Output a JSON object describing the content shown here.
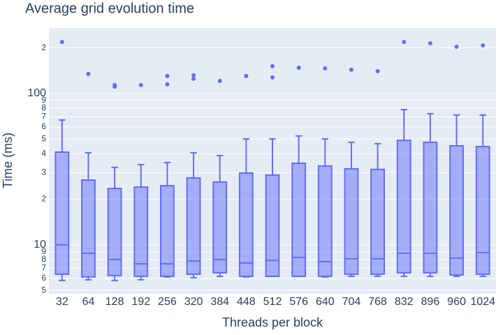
{
  "chart_data": {
    "type": "box",
    "title": "Average grid evolution time",
    "x_label": "Threads per block",
    "y_label": "Time (ms)",
    "categories": [
      "32",
      "64",
      "128",
      "192",
      "256",
      "320",
      "384",
      "448",
      "512",
      "576",
      "640",
      "704",
      "768",
      "832",
      "896",
      "960",
      "1024"
    ],
    "series": [
      {
        "color": "#636efa",
        "min": [
          5.82,
          5.88,
          5.82,
          5.88,
          6.14,
          6.07,
          6.2,
          6.14,
          6.2,
          6.2,
          6.14,
          6.2,
          6.2,
          6.2,
          6.2,
          6.2,
          6.2
        ],
        "q1": [
          6.4,
          6.14,
          6.27,
          6.2,
          6.2,
          6.4,
          6.54,
          6.2,
          6.2,
          6.2,
          6.2,
          6.4,
          6.4,
          6.54,
          6.54,
          6.33,
          6.4
        ],
        "median": [
          10,
          8.8,
          8.0,
          7.5,
          7.5,
          7.83,
          8.0,
          7.6,
          7.9,
          8.26,
          7.75,
          8.09,
          8.09,
          8.8,
          8.8,
          8.17,
          8.9
        ],
        "q3": [
          41.0,
          26.8,
          23.6,
          24.1,
          24.6,
          27.7,
          26.0,
          29.8,
          28.9,
          34.6,
          33.2,
          31.8,
          31.5,
          49.1,
          47.6,
          45.1,
          44.6
        ],
        "max": [
          66.8,
          40.6,
          32.5,
          33.9,
          35.0,
          40.6,
          38.9,
          50.1,
          50.1,
          52.4,
          50.1,
          47.6,
          46.6,
          78.3,
          73.5,
          72.0,
          72.0
        ],
        "outliers": [
          [
            219
          ],
          [
            134.6
          ],
          [
            113.6,
            111
          ],
          [
            113.6
          ],
          [
            130.4,
            114.8
          ],
          [
            131.8,
            125
          ],
          [
            121
          ],
          [
            130.4
          ],
          [
            151.3,
            127.7
          ],
          [
            148
          ],
          [
            146.5
          ],
          [
            143.5
          ],
          [
            140.3
          ],
          [
            219
          ],
          [
            214.6
          ],
          [
            203.6
          ],
          [
            207.8
          ]
        ]
      }
    ],
    "log_y": true,
    "grid": true,
    "ylim": [
      4.75,
      271
    ],
    "yticks": [
      5,
      6,
      7,
      8,
      9,
      10,
      {
        "value": 20,
        "label": "2"
      },
      {
        "value": 30,
        "label": "3"
      },
      {
        "value": 40,
        "label": "4"
      },
      {
        "value": 50,
        "label": "5"
      },
      {
        "value": 60,
        "label": "6"
      },
      {
        "value": 70,
        "label": "7"
      },
      {
        "value": 80,
        "label": "8"
      },
      {
        "value": 90,
        "label": "9"
      },
      100,
      {
        "value": 200,
        "label": "2"
      }
    ]
  }
}
